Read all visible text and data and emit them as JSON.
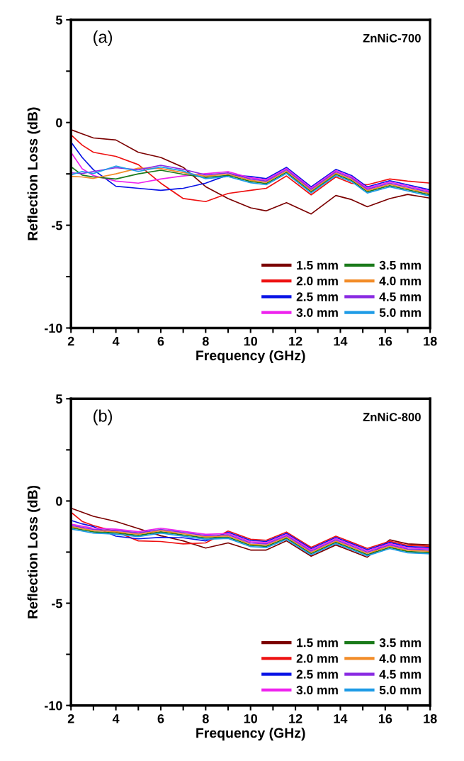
{
  "chart_data": [
    {
      "type": "line",
      "xlabel": "Frequency (GHz)",
      "ylabel": "Reflection Loss (dB)",
      "annotations": [
        "(a)",
        "ZnNiC-700"
      ],
      "x": [
        2,
        2.5,
        3,
        4,
        5,
        6,
        7,
        8,
        9,
        10,
        10.7,
        11.6,
        12.7,
        13.8,
        14.5,
        15.2,
        16.2,
        17,
        18
      ],
      "xlim": [
        2,
        18
      ],
      "ylim": [
        -10,
        5
      ],
      "xticks": [
        2,
        {
          "value": 3,
          "label": null
        },
        4,
        {
          "value": 5,
          "label": null
        },
        6,
        {
          "value": 7,
          "label": null
        },
        8,
        {
          "value": 9,
          "label": null
        },
        10,
        {
          "value": 11,
          "label": null
        },
        12,
        {
          "value": 13,
          "label": null
        },
        14,
        {
          "value": 15,
          "label": null
        },
        16,
        {
          "value": 17,
          "label": null
        },
        18
      ],
      "yticks": [
        -10,
        {
          "value": -7.5,
          "label": null
        },
        -5,
        {
          "value": -2.5,
          "label": null
        },
        0,
        {
          "value": 2.5,
          "label": null
        },
        5
      ],
      "legend": "bottom right",
      "grid": false,
      "series": [
        {
          "name": "1.5 mm",
          "color": "#7b0000",
          "values": [
            -0.35,
            -0.55,
            -0.75,
            -0.85,
            -1.45,
            -1.7,
            -2.18,
            -3.12,
            -3.7,
            -4.15,
            -4.3,
            -3.9,
            -4.45,
            -3.55,
            -3.75,
            -4.1,
            -3.7,
            -3.5,
            -3.68
          ]
        },
        {
          "name": "2.0 mm",
          "color": "#ee1111",
          "values": [
            -0.6,
            -1.1,
            -1.45,
            -1.65,
            -2.05,
            -2.95,
            -3.7,
            -3.85,
            -3.45,
            -3.3,
            -3.2,
            -2.6,
            -3.52,
            -2.65,
            -2.96,
            -3.03,
            -2.75,
            -2.85,
            -2.95
          ]
        },
        {
          "name": "2.5 mm",
          "color": "#0a14e6",
          "values": [
            -0.95,
            -1.7,
            -2.3,
            -3.1,
            -3.2,
            -3.3,
            -3.2,
            -2.95,
            -2.55,
            -2.63,
            -2.73,
            -2.18,
            -3.13,
            -2.28,
            -2.58,
            -3.13,
            -2.83,
            -3.03,
            -3.28
          ]
        },
        {
          "name": "3.0 mm",
          "color": "#ee22ee",
          "values": [
            -1.45,
            -2.25,
            -2.58,
            -2.85,
            -2.95,
            -2.75,
            -2.6,
            -2.49,
            -2.39,
            -2.69,
            -2.79,
            -2.24,
            -3.19,
            -2.34,
            -2.64,
            -3.19,
            -2.89,
            -3.09,
            -3.34
          ]
        },
        {
          "name": "3.5 mm",
          "color": "#1a7a1a",
          "values": [
            -2.15,
            -2.56,
            -2.65,
            -2.75,
            -2.5,
            -2.32,
            -2.52,
            -2.67,
            -2.57,
            -2.87,
            -2.97,
            -2.42,
            -3.37,
            -2.52,
            -2.82,
            -3.37,
            -3.07,
            -3.27,
            -3.52
          ]
        },
        {
          "name": "4.0 mm",
          "color": "#f28c28",
          "values": [
            -2.62,
            -2.65,
            -2.72,
            -2.5,
            -2.22,
            -2.24,
            -2.44,
            -2.61,
            -2.51,
            -2.81,
            -2.91,
            -2.36,
            -3.31,
            -2.46,
            -2.76,
            -3.31,
            -3.01,
            -3.21,
            -3.46
          ]
        },
        {
          "name": "4.5 mm",
          "color": "#8a2be2",
          "values": [
            -2.45,
            -2.48,
            -2.38,
            -2.2,
            -2.3,
            -2.08,
            -2.28,
            -2.55,
            -2.45,
            -2.75,
            -2.85,
            -2.3,
            -3.25,
            -2.4,
            -2.7,
            -3.25,
            -2.95,
            -3.15,
            -3.4
          ]
        },
        {
          "name": "5.0 mm",
          "color": "#1e9be6",
          "values": [
            -2.55,
            -2.38,
            -2.48,
            -2.12,
            -2.38,
            -2.16,
            -2.36,
            -2.73,
            -2.63,
            -2.93,
            -3.03,
            -2.48,
            -3.43,
            -2.58,
            -2.88,
            -3.43,
            -3.13,
            -3.33,
            -3.58
          ]
        }
      ]
    },
    {
      "type": "line",
      "xlabel": "Frequency (GHz)",
      "ylabel": "Reflection Loss (dB)",
      "annotations": [
        "(b)",
        "ZnNiC-800"
      ],
      "x": [
        2,
        2.5,
        3,
        4,
        5,
        6,
        7,
        8,
        9,
        10,
        10.7,
        11.6,
        12.7,
        13.8,
        14.5,
        15.2,
        16.2,
        17,
        18
      ],
      "xlim": [
        2,
        18
      ],
      "ylim": [
        -10,
        5
      ],
      "xticks": [
        2,
        {
          "value": 3,
          "label": null
        },
        4,
        {
          "value": 5,
          "label": null
        },
        6,
        {
          "value": 7,
          "label": null
        },
        8,
        {
          "value": 9,
          "label": null
        },
        10,
        {
          "value": 11,
          "label": null
        },
        12,
        {
          "value": 13,
          "label": null
        },
        14,
        {
          "value": 15,
          "label": null
        },
        16,
        {
          "value": 17,
          "label": null
        },
        18
      ],
      "yticks": [
        -10,
        {
          "value": -7.5,
          "label": null
        },
        -5,
        {
          "value": -2.5,
          "label": null
        },
        0,
        {
          "value": 2.5,
          "label": null
        },
        5
      ],
      "legend": "bottom right",
      "grid": false,
      "series": [
        {
          "name": "1.5 mm",
          "color": "#7b0000",
          "values": [
            -0.35,
            -0.55,
            -0.75,
            -1.0,
            -1.35,
            -1.7,
            -1.95,
            -2.3,
            -2.05,
            -2.4,
            -2.4,
            -1.95,
            -2.7,
            -2.15,
            -2.45,
            -2.75,
            -1.9,
            -2.1,
            -2.15
          ]
        },
        {
          "name": "2.0 mm",
          "color": "#ee1111",
          "values": [
            -0.55,
            -1.0,
            -1.2,
            -1.5,
            -1.95,
            -1.98,
            -2.1,
            -2.05,
            -1.47,
            -1.87,
            -1.92,
            -1.52,
            -2.27,
            -1.72,
            -2.02,
            -2.32,
            -1.97,
            -2.17,
            -2.22
          ]
        },
        {
          "name": "2.5 mm",
          "color": "#0a14e6",
          "values": [
            -0.95,
            -1.12,
            -1.25,
            -1.72,
            -1.85,
            -1.78,
            -1.8,
            -1.95,
            -1.53,
            -1.93,
            -1.98,
            -1.58,
            -2.33,
            -1.78,
            -2.08,
            -2.38,
            -2.03,
            -2.23,
            -2.28
          ]
        },
        {
          "name": "3.0 mm",
          "color": "#ee22ee",
          "values": [
            -1.13,
            -1.23,
            -1.33,
            -1.38,
            -1.5,
            -1.33,
            -1.48,
            -1.63,
            -1.59,
            -1.99,
            -2.04,
            -1.64,
            -2.39,
            -1.84,
            -2.14,
            -2.44,
            -2.09,
            -2.29,
            -2.34
          ]
        },
        {
          "name": "3.5 mm",
          "color": "#1a7a1a",
          "values": [
            -1.31,
            -1.41,
            -1.51,
            -1.56,
            -1.68,
            -1.51,
            -1.66,
            -1.81,
            -1.77,
            -2.17,
            -2.22,
            -1.82,
            -2.57,
            -2.02,
            -2.32,
            -2.62,
            -2.27,
            -2.47,
            -2.52
          ]
        },
        {
          "name": "4.0 mm",
          "color": "#f28c28",
          "values": [
            -1.25,
            -1.35,
            -1.45,
            -1.5,
            -1.62,
            -1.45,
            -1.6,
            -1.75,
            -1.71,
            -2.11,
            -2.16,
            -1.76,
            -2.51,
            -1.96,
            -2.26,
            -2.56,
            -2.21,
            -2.41,
            -2.46
          ]
        },
        {
          "name": "4.5 mm",
          "color": "#8a2be2",
          "values": [
            -1.19,
            -1.29,
            -1.39,
            -1.44,
            -1.56,
            -1.39,
            -1.54,
            -1.69,
            -1.65,
            -2.05,
            -2.1,
            -1.7,
            -2.45,
            -1.9,
            -2.2,
            -2.5,
            -2.15,
            -2.35,
            -2.4
          ]
        },
        {
          "name": "5.0 mm",
          "color": "#1e9be6",
          "values": [
            -1.37,
            -1.47,
            -1.57,
            -1.62,
            -1.74,
            -1.57,
            -1.72,
            -1.87,
            -1.83,
            -2.23,
            -2.28,
            -1.88,
            -2.63,
            -2.08,
            -2.38,
            -2.68,
            -2.33,
            -2.53,
            -2.58
          ]
        }
      ]
    }
  ]
}
